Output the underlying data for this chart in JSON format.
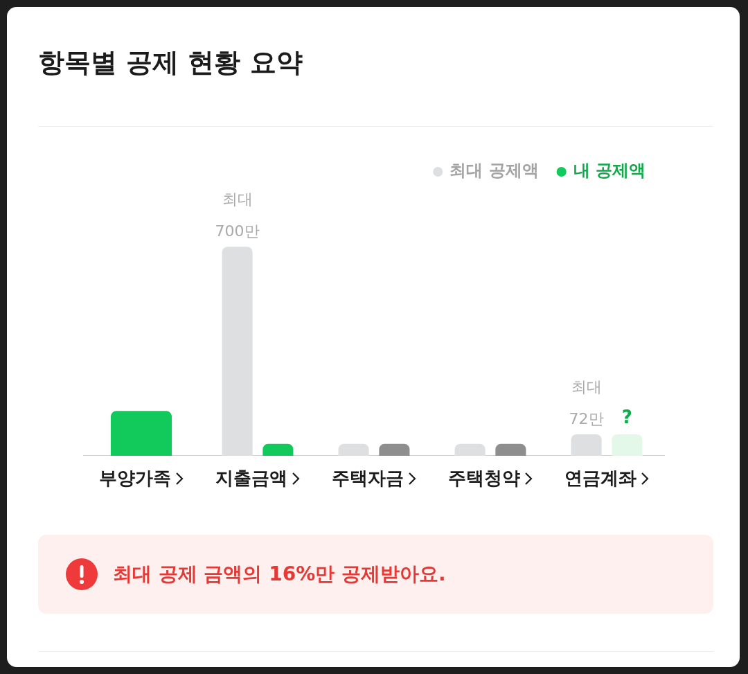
{
  "chart_data": {
    "type": "bar",
    "title": "항목별 공제 현황 요약",
    "categories": [
      "부양가족",
      "지출금액",
      "주택자금",
      "주택청약",
      "연금계좌"
    ],
    "series": [
      {
        "name": "최대 공제액",
        "color": "#dedfe1",
        "values": [
          null,
          700,
          40,
          40,
          72
        ],
        "value_labels": [
          null,
          "최대\n700만",
          null,
          null,
          "최대\n72만"
        ]
      },
      {
        "name": "내 공제액",
        "color": "#12c95c",
        "colors": [
          "#12c95c",
          "#12c95c",
          "#8e8e8e",
          "#8e8e8e",
          "#e3f8e9"
        ],
        "values": [
          150,
          40,
          40,
          40,
          72
        ],
        "value_labels": [
          null,
          null,
          null,
          null,
          "?"
        ]
      }
    ],
    "legend": "top right",
    "tick_labels": "x",
    "annotations": [
      "최대 공제 금액의 16%만 공제받아요."
    ]
  }
}
